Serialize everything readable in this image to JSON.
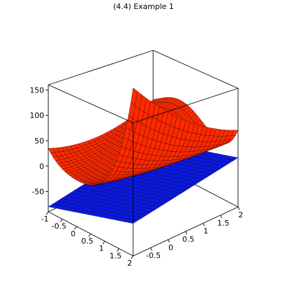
{
  "chart_data": {
    "type": "surface3d",
    "title": "(4.4) Example 1",
    "x": {
      "range": [
        -1,
        2
      ],
      "ticks": [
        "-1",
        "-0.5",
        "0",
        "0.5",
        "1",
        "1.5",
        "2"
      ]
    },
    "y": {
      "range": [
        -1,
        2
      ],
      "ticks": [
        "-0.5",
        "0",
        "0.5",
        "1",
        "1.5",
        "2"
      ]
    },
    "z": {
      "range": [
        -90,
        160
      ],
      "ticks": [
        "150",
        "100",
        "50",
        "0",
        "-50"
      ]
    },
    "series": [
      {
        "color": "#ff2a00",
        "grid": [
          36,
          24
        ],
        "shape": "curved surface rising to about 150 at the far corners"
      },
      {
        "color": "#0a1aff",
        "grid": [
          36,
          24
        ],
        "shape": "tilted plane, from about -80 up to about 25"
      }
    ]
  }
}
